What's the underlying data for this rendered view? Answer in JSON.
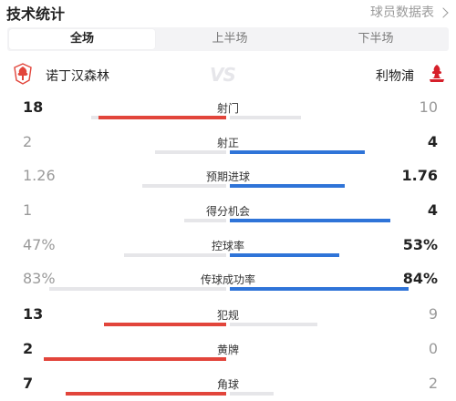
{
  "header": {
    "title": "技术统计",
    "link_label": "球员数据表"
  },
  "tabs": [
    {
      "label": "全场",
      "active": true
    },
    {
      "label": "上半场",
      "active": false
    },
    {
      "label": "下半场",
      "active": false
    }
  ],
  "teams": {
    "home": {
      "name": "诺丁汉森林",
      "color": "#e2453b"
    },
    "away": {
      "name": "利物浦",
      "color": "#2f74d8"
    },
    "vs": "VS"
  },
  "stats": [
    {
      "label": "射门",
      "home": "18",
      "away": "10",
      "home_track": 0.74,
      "home_fill": 0.7,
      "away_track": 0.39,
      "away_fill": 0.0
    },
    {
      "label": "射正",
      "home": "2",
      "away": "4",
      "home_track": 0.39,
      "home_fill": 0.0,
      "away_track": 0.74,
      "away_fill": 0.74
    },
    {
      "label": "预期进球",
      "home": "1.26",
      "away": "1.76",
      "home_track": 0.46,
      "home_fill": 0.0,
      "away_track": 0.63,
      "away_fill": 0.63
    },
    {
      "label": "得分机会",
      "home": "1",
      "away": "4",
      "home_track": 0.23,
      "home_fill": 0.0,
      "away_track": 0.88,
      "away_fill": 0.88
    },
    {
      "label": "控球率",
      "home": "47%",
      "away": "53%",
      "home_track": 0.56,
      "home_fill": 0.0,
      "away_track": 0.6,
      "away_fill": 0.6
    },
    {
      "label": "传球成功率",
      "home": "83%",
      "away": "84%",
      "home_track": 0.97,
      "home_fill": 0.0,
      "away_track": 0.98,
      "away_fill": 0.98
    },
    {
      "label": "犯规",
      "home": "13",
      "away": "9",
      "home_track": 0.67,
      "home_fill": 0.67,
      "away_track": 0.48,
      "away_fill": 0.0
    },
    {
      "label": "黄牌",
      "home": "2",
      "away": "0",
      "home_track": 1.0,
      "home_fill": 1.0,
      "away_track": 0.0,
      "away_fill": 0.0
    },
    {
      "label": "角球",
      "home": "7",
      "away": "2",
      "home_track": 0.88,
      "home_fill": 0.88,
      "away_track": 0.24,
      "away_fill": 0.0
    }
  ]
}
